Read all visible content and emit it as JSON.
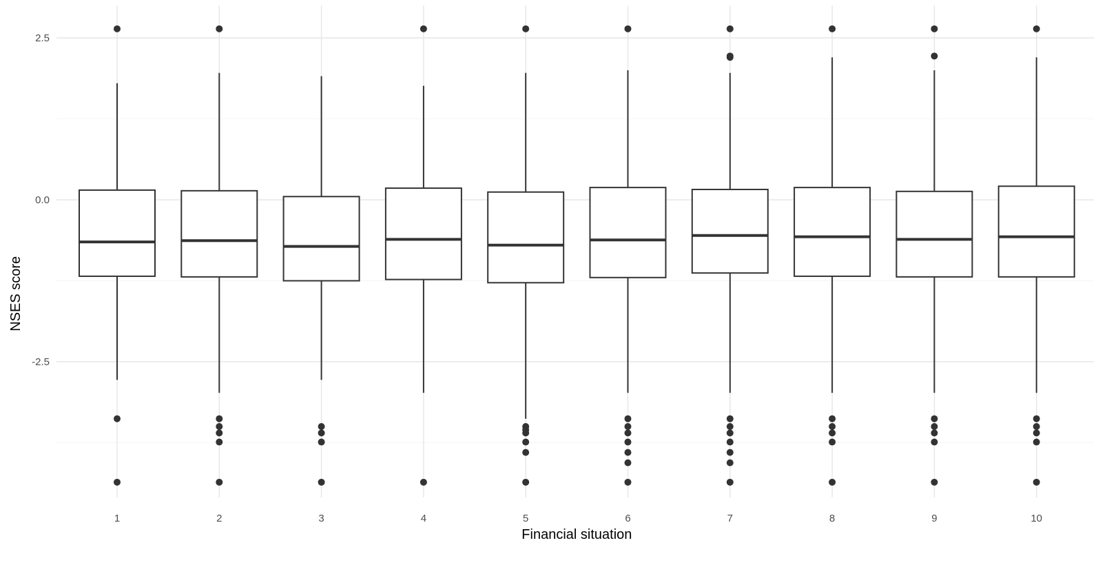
{
  "chart_data": {
    "type": "boxplot",
    "xlabel": "Financial situation",
    "ylabel": "NSES score",
    "categories": [
      "1",
      "2",
      "3",
      "4",
      "5",
      "6",
      "7",
      "8",
      "9",
      "10"
    ],
    "y_ticks": [
      -2.5,
      0.0,
      2.5
    ],
    "y_tick_labels": [
      "-2.5",
      "0.0",
      "2.5"
    ],
    "ylim": [
      -4.8,
      3.0
    ],
    "grid": true,
    "legend": "none",
    "colors": {
      "box_stroke": "#333333",
      "box_fill": "#ffffff",
      "grid_major": "#e6e6e6",
      "grid_minor": "#f2f2f2"
    },
    "boxes": [
      {
        "category": "1",
        "lower_whisker": -2.78,
        "q1": -1.18,
        "median": -0.65,
        "q3": 0.15,
        "upper_whisker": 1.8,
        "outliers": [
          2.64,
          -3.38,
          -4.36
        ]
      },
      {
        "category": "2",
        "lower_whisker": -2.98,
        "q1": -1.19,
        "median": -0.63,
        "q3": 0.14,
        "upper_whisker": 1.96,
        "outliers": [
          2.64,
          -3.38,
          -3.5,
          -3.6,
          -3.74,
          -4.36
        ]
      },
      {
        "category": "3",
        "lower_whisker": -2.78,
        "q1": -1.25,
        "median": -0.72,
        "q3": 0.05,
        "upper_whisker": 1.91,
        "outliers": [
          -3.5,
          -3.6,
          -3.74,
          -4.36
        ]
      },
      {
        "category": "4",
        "lower_whisker": -2.98,
        "q1": -1.23,
        "median": -0.61,
        "q3": 0.18,
        "upper_whisker": 1.76,
        "outliers": [
          2.64,
          -4.36
        ]
      },
      {
        "category": "5",
        "lower_whisker": -3.38,
        "q1": -1.28,
        "median": -0.7,
        "q3": 0.12,
        "upper_whisker": 1.96,
        "outliers": [
          2.64,
          -3.5,
          -3.55,
          -3.6,
          -3.74,
          -3.9,
          -4.36
        ]
      },
      {
        "category": "6",
        "lower_whisker": -2.98,
        "q1": -1.2,
        "median": -0.62,
        "q3": 0.19,
        "upper_whisker": 2.0,
        "outliers": [
          2.64,
          -3.38,
          -3.5,
          -3.6,
          -3.74,
          -3.9,
          -4.06,
          -4.36
        ]
      },
      {
        "category": "7",
        "lower_whisker": -2.98,
        "q1": -1.13,
        "median": -0.55,
        "q3": 0.16,
        "upper_whisker": 1.96,
        "outliers": [
          2.64,
          2.22,
          2.2,
          -3.38,
          -3.5,
          -3.6,
          -3.74,
          -3.9,
          -4.06,
          -4.36
        ]
      },
      {
        "category": "8",
        "lower_whisker": -2.98,
        "q1": -1.18,
        "median": -0.57,
        "q3": 0.19,
        "upper_whisker": 2.2,
        "outliers": [
          2.64,
          -3.38,
          -3.5,
          -3.6,
          -3.74,
          -4.36
        ]
      },
      {
        "category": "9",
        "lower_whisker": -2.98,
        "q1": -1.19,
        "median": -0.61,
        "q3": 0.13,
        "upper_whisker": 2.0,
        "outliers": [
          2.64,
          2.22,
          -3.38,
          -3.5,
          -3.6,
          -3.74,
          -4.36
        ]
      },
      {
        "category": "10",
        "lower_whisker": -2.98,
        "q1": -1.19,
        "median": -0.57,
        "q3": 0.21,
        "upper_whisker": 2.2,
        "outliers": [
          2.64,
          -3.38,
          -3.5,
          -3.6,
          -3.74,
          -4.36
        ]
      }
    ]
  }
}
